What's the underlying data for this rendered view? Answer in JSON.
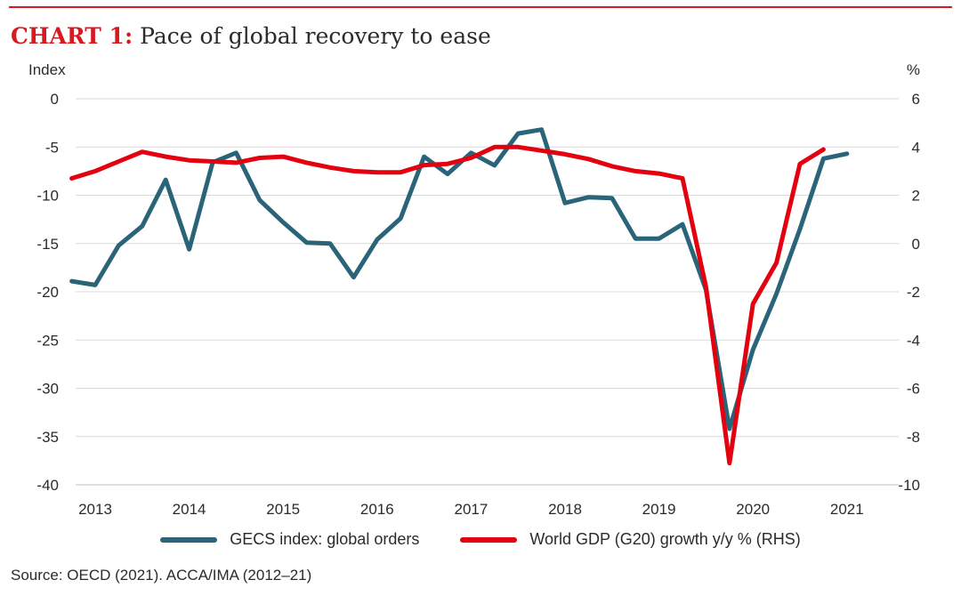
{
  "title": {
    "label": "CHART 1:",
    "text": " Pace of global recovery to ease"
  },
  "source": "Source: OECD (2021). ACCA/IMA (2012–21)",
  "chart_data": {
    "type": "line",
    "left_axis_label": "Index",
    "right_axis_label": "%",
    "left_ylim": [
      -40,
      0
    ],
    "left_ticks": [
      "0",
      "-5",
      "-10",
      "-15",
      "-20",
      "-25",
      "-30",
      "-35",
      "-40"
    ],
    "right_ylim": [
      -10,
      6
    ],
    "right_ticks": [
      "6",
      "4",
      "2",
      "0",
      "-2",
      "-4",
      "-6",
      "-8",
      "-10"
    ],
    "x_tick_labels": [
      "2013",
      "2014",
      "2015",
      "2016",
      "2017",
      "2018",
      "2019",
      "2020",
      "2021"
    ],
    "grid": "horizontal",
    "legend_position": "bottom",
    "series": [
      {
        "name": "GECS index: global orders",
        "axis": "left",
        "color": "#2a6478",
        "points": [
          [
            "2012-Q4",
            -18.9
          ],
          [
            "2013-Q1",
            -19.3
          ],
          [
            "2013-Q2",
            -15.2
          ],
          [
            "2013-Q3",
            -13.2
          ],
          [
            "2013-Q4",
            -8.4
          ],
          [
            "2014-Q1",
            -15.6
          ],
          [
            "2014-Q2",
            -6.6
          ],
          [
            "2014-Q3",
            -5.6
          ],
          [
            "2014-Q4",
            -10.5
          ],
          [
            "2015-Q1",
            -12.8
          ],
          [
            "2015-Q2",
            -14.9
          ],
          [
            "2015-Q3",
            -15.0
          ],
          [
            "2015-Q4",
            -18.5
          ],
          [
            "2016-Q1",
            -14.6
          ],
          [
            "2016-Q2",
            -12.4
          ],
          [
            "2016-Q3",
            -6.0
          ],
          [
            "2016-Q4",
            -7.8
          ],
          [
            "2017-Q1",
            -5.6
          ],
          [
            "2017-Q2",
            -6.9
          ],
          [
            "2017-Q3",
            -3.6
          ],
          [
            "2017-Q4",
            -3.2
          ],
          [
            "2018-Q1",
            -10.8
          ],
          [
            "2018-Q2",
            -10.2
          ],
          [
            "2018-Q3",
            -10.3
          ],
          [
            "2018-Q4",
            -14.5
          ],
          [
            "2019-Q1",
            -14.5
          ],
          [
            "2019-Q2",
            -13.0
          ],
          [
            "2019-Q3",
            -19.8
          ],
          [
            "2019-Q4",
            -34.2
          ],
          [
            "2020-Q1",
            -26.0
          ],
          [
            "2020-Q2",
            -20.2
          ],
          [
            "2020-Q3",
            -13.5
          ],
          [
            "2020-Q4",
            -6.2
          ],
          [
            "2021-Q1",
            -5.7
          ]
        ]
      },
      {
        "name": "World GDP (G20) growth y/y % (RHS)",
        "axis": "right",
        "color": "#e3000f",
        "points": [
          [
            "2012-Q4",
            2.7
          ],
          [
            "2013-Q1",
            3.0
          ],
          [
            "2013-Q2",
            3.4
          ],
          [
            "2013-Q3",
            3.8
          ],
          [
            "2013-Q4",
            3.6
          ],
          [
            "2014-Q1",
            3.45
          ],
          [
            "2014-Q2",
            3.4
          ],
          [
            "2014-Q3",
            3.35
          ],
          [
            "2014-Q4",
            3.55
          ],
          [
            "2015-Q1",
            3.6
          ],
          [
            "2015-Q2",
            3.35
          ],
          [
            "2015-Q3",
            3.15
          ],
          [
            "2015-Q4",
            3.0
          ],
          [
            "2016-Q1",
            2.95
          ],
          [
            "2016-Q2",
            2.95
          ],
          [
            "2016-Q3",
            3.25
          ],
          [
            "2016-Q4",
            3.3
          ],
          [
            "2017-Q1",
            3.55
          ],
          [
            "2017-Q2",
            4.0
          ],
          [
            "2017-Q3",
            4.0
          ],
          [
            "2017-Q4",
            3.85
          ],
          [
            "2018-Q1",
            3.7
          ],
          [
            "2018-Q2",
            3.5
          ],
          [
            "2018-Q3",
            3.2
          ],
          [
            "2018-Q4",
            3.0
          ],
          [
            "2019-Q1",
            2.9
          ],
          [
            "2019-Q2",
            2.7
          ],
          [
            "2019-Q3",
            -1.8
          ],
          [
            "2019-Q4",
            -9.1
          ],
          [
            "2020-Q1",
            -2.5
          ],
          [
            "2020-Q2",
            -0.8
          ],
          [
            "2020-Q3",
            3.3
          ],
          [
            "2020-Q4",
            3.9
          ]
        ]
      }
    ]
  }
}
